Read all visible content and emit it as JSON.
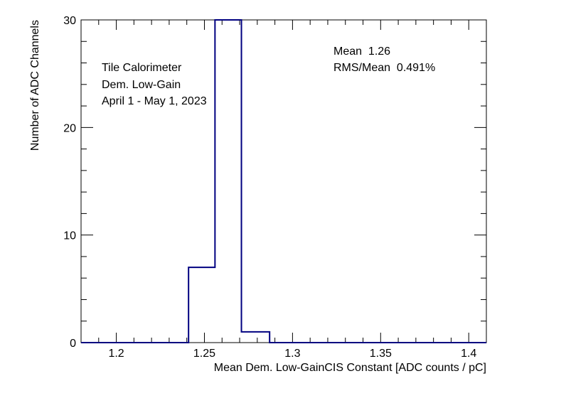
{
  "chart_data": {
    "type": "bar",
    "style": "step-histogram",
    "line_color": "#000080",
    "xlabel": "Mean Dem. Low-GainCIS Constant [ADC counts / pC]",
    "ylabel": "Number of ADC Channels",
    "xlim": [
      1.18,
      1.41
    ],
    "ylim": [
      0,
      30
    ],
    "x_ticks": [
      1.2,
      1.25,
      1.3,
      1.35,
      1.4
    ],
    "x_tick_labels": [
      "1.2",
      "1.25",
      "1.3",
      "1.35",
      "1.4"
    ],
    "y_ticks": [
      0,
      10,
      20,
      30
    ],
    "y_tick_labels": [
      "0",
      "10",
      "20",
      "30"
    ],
    "bins": [
      {
        "x0": 1.18,
        "x1": 1.241,
        "value": 0
      },
      {
        "x0": 1.241,
        "x1": 1.256,
        "value": 7
      },
      {
        "x0": 1.256,
        "x1": 1.271,
        "value": 30
      },
      {
        "x0": 1.271,
        "x1": 1.287,
        "value": 1
      },
      {
        "x0": 1.287,
        "x1": 1.41,
        "value": 0
      }
    ],
    "grid": false
  },
  "annotations": {
    "left": [
      "Tile Calorimeter",
      "Dem. Low-Gain",
      "April 1 - May 1, 2023"
    ],
    "stats": [
      "Mean  1.26",
      "RMS/Mean  0.491%"
    ]
  }
}
